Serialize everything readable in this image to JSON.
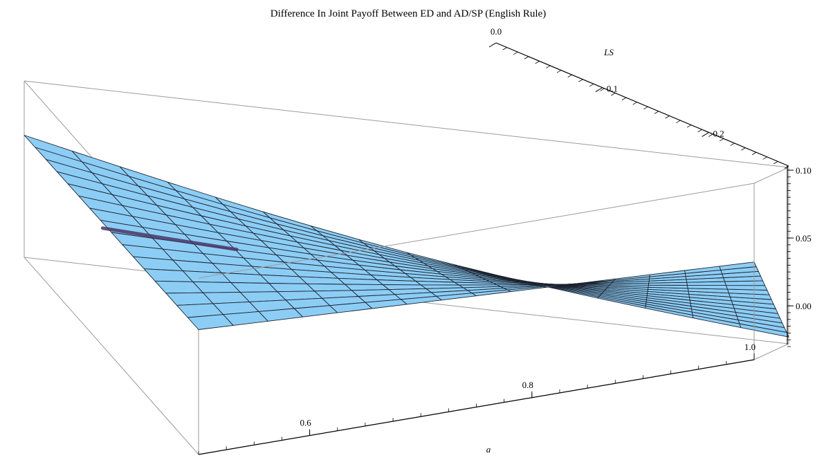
{
  "chart_data": {
    "type": "surface3d",
    "title": "Difference In Joint Payoff Between ED and AD/SP (English Rule)",
    "xlabel": "a",
    "ylabel": "LS",
    "zlabel": "",
    "xlim": [
      0.5,
      1.0
    ],
    "ylim": [
      0.0,
      0.3
    ],
    "zlim": [
      -0.03,
      0.1
    ],
    "x_ticks": [
      "0.6",
      "0.8",
      "1.0"
    ],
    "y_ticks": [
      "0.0",
      "0.1",
      "0.2"
    ],
    "z_ticks": [
      "0.00",
      "0.05",
      "0.10"
    ],
    "grid": false,
    "legend": "none",
    "colors": {
      "surface_top": "#8ccdf5",
      "surface_under": "#4a3565",
      "mesh": "#1d2330",
      "box": "#9a9a9a",
      "axis": "#000000"
    },
    "surface": {
      "x": [
        0.5,
        1.0
      ],
      "y": [
        0.0,
        0.3
      ],
      "z_samples": [
        {
          "a": 0.5,
          "LS": 0.0,
          "z": 0.062
        },
        {
          "a": 0.5,
          "LS": 0.3,
          "z": 0.06
        },
        {
          "a": 1.0,
          "LS": 0.0,
          "z": 0.042
        },
        {
          "a": 1.0,
          "LS": 0.3,
          "z": -0.025
        }
      ]
    }
  }
}
